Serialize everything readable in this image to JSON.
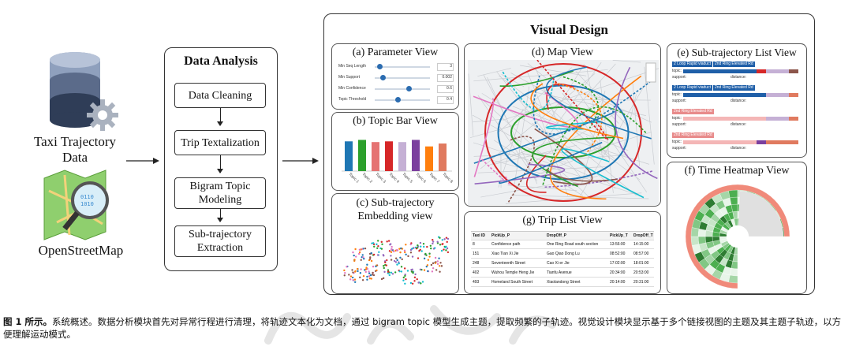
{
  "inputs": {
    "taxi_label": "Taxi Trajectory Data",
    "osm_label": "OpenStreetMap"
  },
  "data_analysis": {
    "title": "Data Analysis",
    "steps": [
      "Data Cleaning",
      "Trip Textalization",
      "Bigram Topic Modeling",
      "Sub-trajectory Extraction"
    ]
  },
  "visual_design": {
    "title": "Visual Design",
    "parameter_view": {
      "title": "(a) Parameter View",
      "params": [
        {
          "label": "Min Seq Length",
          "value": "3",
          "level": 0.05
        },
        {
          "label": "Min Support",
          "value": "0.002",
          "level": 0.1
        },
        {
          "label": "Min Confidence",
          "value": "0.6",
          "level": 0.6
        },
        {
          "label": "Topic Threshold",
          "value": "0.4",
          "level": 0.4
        }
      ]
    },
    "topic_bar_view": {
      "title": "(b) Topic Bar View",
      "bar_colors": [
        "#1f77b4",
        "#2ca02c",
        "#e57373",
        "#d62728",
        "#c5b0d5",
        "#7b3f9e",
        "#ff7f0e",
        "#e07a5f"
      ],
      "bar_values": [
        0.82,
        0.86,
        0.8,
        0.82,
        0.8,
        0.86,
        0.68,
        0.76
      ],
      "tick_labels": [
        "Topic 1",
        "Topic 2",
        "Topic 3",
        "Topic 4",
        "Topic 5",
        "Topic 6",
        "Topic 7",
        "Topic 8"
      ]
    },
    "embedding_view": {
      "title": "(c) Sub-trajectory Embedding view"
    },
    "map_view": {
      "title": "(d) Map View"
    },
    "trip_list_view": {
      "title": "(g) Trip List View",
      "columns": [
        "Taxi ID",
        "PickUp_P",
        "DropOff_P",
        "PickUp_T",
        "DropOff_T"
      ],
      "rows": [
        [
          "8",
          "Confidence path",
          "One Ring Road south section",
          "13:56:00",
          "14:15:00"
        ],
        [
          "151",
          "Xiao Tian Xi Jie",
          "Gao Qiao Dong Lu",
          "08:52:00",
          "08:57:00"
        ],
        [
          "248",
          "Seventeenth Street",
          "Cao Xi er Jie",
          "17:02:00",
          "18:01:00"
        ],
        [
          "402",
          "Wuhou Temple Heng Jie",
          "Tianfu Avenue",
          "20:34:00",
          "20:53:00"
        ],
        [
          "493",
          "Homeland South Street",
          "Xiaolandong Street",
          "20:14:00",
          "20:31:00"
        ]
      ]
    },
    "subtraj_list_view": {
      "title": "(e) Sub-trajectory List View",
      "items": [
        {
          "tags": [
            "2 Loop Rapid viaduct",
            "2nd Ring Elevated Rd"
          ],
          "topic": "topic:",
          "support": "support:",
          "distance": "distance:"
        },
        {
          "tags": [
            "2 Loop Rapid viaduct",
            "2nd Ring Elevated Rd"
          ],
          "topic": "topic:",
          "support": "support:",
          "distance": "distance:"
        },
        {
          "tags": [
            "2nd Ring Elevated Rd"
          ],
          "topic": "topic:",
          "support": "support:",
          "distance": "distance:"
        },
        {
          "tags": [
            "2nd Ring Elevated Rd"
          ],
          "topic": "topic:",
          "support": "support:",
          "distance": "distance:"
        }
      ]
    },
    "time_heatmap_view": {
      "title": "(f) Time Heatmap View"
    }
  },
  "caption": {
    "label": "图 1 所示。",
    "text": "系统概述。数据分析模块首先对异常行程进行清理，将轨迹文本化为文档，通过 bigram topic 模型生成主题，提取频繁的子轨迹。视觉设计模块显示基于多个链接视图的主题及其主题子轨迹，以方便理解运动模式。"
  },
  "colors": {
    "db_dark": "#2f3d57",
    "db_mid": "#5b6b8a",
    "db_light": "#8fa0bd",
    "gear": "#aab2bf",
    "map_green": "#6dbb4f",
    "heat_green": "#2e9d4e",
    "heat_outer": "#f08a7a"
  }
}
